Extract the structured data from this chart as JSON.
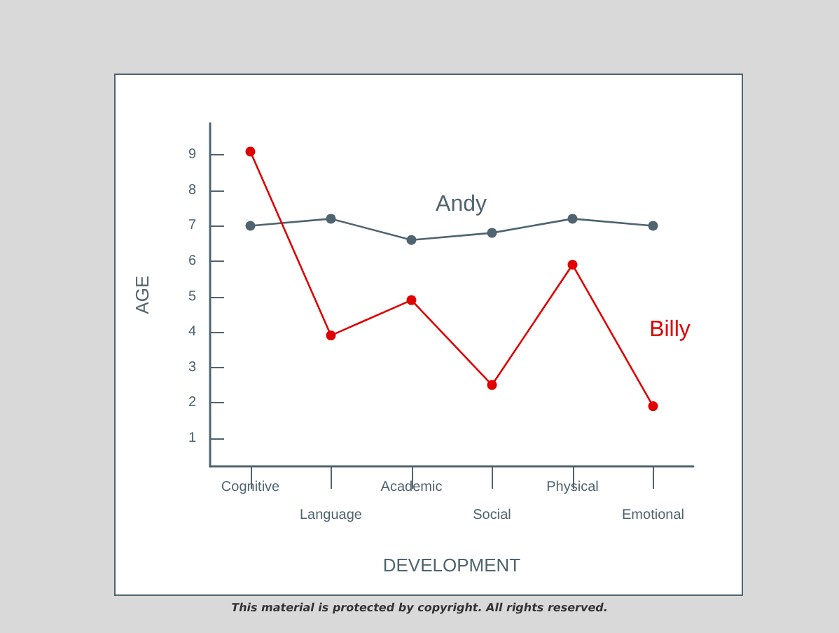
{
  "chart_data": {
    "type": "line",
    "xlabel": "DEVELOPMENT",
    "ylabel": "AGE",
    "categories": [
      "Cognitive",
      "Language",
      "Academic",
      "Social",
      "Physical",
      "Emotional"
    ],
    "series": [
      {
        "name": "Andy",
        "color": "#4f6470",
        "values": [
          7.0,
          7.2,
          6.6,
          6.8,
          7.2,
          7.0
        ]
      },
      {
        "name": "Billy",
        "color": "#e00000",
        "values": [
          9.1,
          3.9,
          4.9,
          2.5,
          5.9,
          1.9
        ]
      }
    ],
    "ylim": [
      0.2,
      9.9
    ],
    "yticks": [
      1,
      2,
      3,
      4,
      5,
      6,
      7,
      8,
      9
    ],
    "marker": "circle",
    "line_style": "solid",
    "grid": false,
    "legend": false,
    "annotations": [
      "This material is protected by copyright. All rights reserved."
    ]
  }
}
